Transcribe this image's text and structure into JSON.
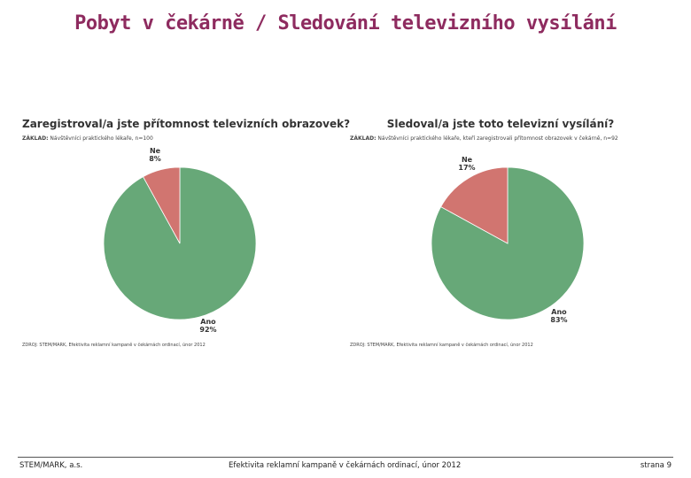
{
  "page": {
    "title": "Pobyt v čekárně / Sledování televizního vysílání"
  },
  "footer": {
    "company": "STEM/MARK, a.s.",
    "study": "Efektivita reklamní kampaně v čekárnách ordinací, únor 2012",
    "page_label": "strana 9"
  },
  "colors": {
    "title": "#8e2b5f",
    "yes": "#67a878",
    "no": "#d17570"
  },
  "chart_data": [
    {
      "type": "pie",
      "title": "Zaregistroval/a jste přítomnost televizních obrazovek?",
      "base_label": "ZÁKLAD:",
      "base_text": "Návštěvníci praktického lékaře, n=100",
      "source": "ZDROJ: STEM/MARK, Efektivita reklamní kampaně v čekárnách ordinací, únor 2012",
      "slices": [
        {
          "label": "Ano",
          "value": 92,
          "display": "92%",
          "color": "#67a878"
        },
        {
          "label": "Ne",
          "value": 8,
          "display": "8%",
          "color": "#d17570"
        }
      ]
    },
    {
      "type": "pie",
      "title": "Sledoval/a jste toto televizní vysílání?",
      "base_label": "ZÁKLAD:",
      "base_text": "Návštěvníci praktického lékaře, kteří zaregistrovali přítomnost obrazovek v čekárně, n=92",
      "source": "ZDROJ: STEM/MARK, Efektivita reklamní kampaně v čekárnách ordinací, únor 2012",
      "slices": [
        {
          "label": "Ano",
          "value": 83,
          "display": "83%",
          "color": "#67a878"
        },
        {
          "label": "Ne",
          "value": 17,
          "display": "17%",
          "color": "#d17570"
        }
      ]
    }
  ]
}
